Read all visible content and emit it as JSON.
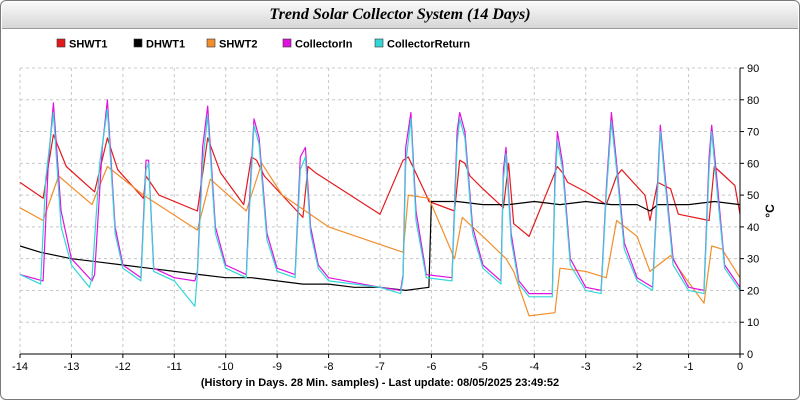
{
  "chart_data": {
    "type": "line",
    "title": "Trend Solar Collector System (14 Days)",
    "xlabel": "(History in Days. 28 Min. samples) - Last update: 08/05/2025 23:49:52",
    "ylabel": "°C",
    "xlim": [
      -14,
      0
    ],
    "ylim": [
      0,
      90
    ],
    "xticks": [
      "-14",
      "-13",
      "-12",
      "-11",
      "-10",
      "-9",
      "-8",
      "-7",
      "-6",
      "-5",
      "-4",
      "-3",
      "-2",
      "-1",
      "0"
    ],
    "yticks": [
      "0",
      "10",
      "20",
      "30",
      "40",
      "50",
      "60",
      "70",
      "80",
      "90"
    ],
    "grid": true,
    "legend_position": "top-left",
    "series": [
      {
        "name": "SHWT1",
        "color": "#e31a1c",
        "x": [
          -14,
          -13.55,
          -13.35,
          -13.1,
          -12.55,
          -12.3,
          -12.1,
          -11.6,
          -11.55,
          -11.3,
          -10.55,
          -10.35,
          -10.1,
          -9.65,
          -9.5,
          -9.4,
          -9.25,
          -8.5,
          -8.4,
          -8.25,
          -7.0,
          -6.55,
          -6.45,
          -6.1,
          -6.05,
          -5.55,
          -5.45,
          -5.35,
          -5.25,
          -5.0,
          -4.6,
          -4.5,
          -4.4,
          -4.1,
          -3.65,
          -3.55,
          -3.45,
          -3.35,
          -3.0,
          -2.6,
          -2.4,
          -2.3,
          -1.85,
          -1.75,
          -1.6,
          -1.35,
          -1.2,
          -0.6,
          -0.5,
          -0.3,
          -0.1,
          0
        ],
        "values": [
          54,
          49,
          69,
          59,
          51,
          68,
          58,
          49,
          56,
          50,
          45,
          68,
          57,
          47,
          62,
          61,
          56,
          43,
          59,
          57,
          44,
          61,
          62,
          50,
          48,
          45,
          61,
          60,
          56,
          52,
          46,
          60,
          41,
          37,
          55,
          59,
          57,
          54,
          51,
          47,
          56,
          58,
          50,
          42,
          54,
          52,
          44,
          42,
          59,
          56,
          53,
          44
        ]
      },
      {
        "name": "DHWT1",
        "color": "#000000",
        "x": [
          -14,
          -13.6,
          -13.0,
          -12.5,
          -12.0,
          -11.5,
          -11.0,
          -10.5,
          -10.0,
          -9.5,
          -9.0,
          -8.5,
          -8.0,
          -7.5,
          -7.0,
          -6.5,
          -6.05,
          -6.0,
          -5.5,
          -5.0,
          -4.5,
          -4.0,
          -3.5,
          -3.0,
          -2.5,
          -2.0,
          -1.75,
          -1.6,
          -1.0,
          -0.5,
          0
        ],
        "values": [
          34,
          32,
          30,
          29,
          28,
          27,
          26,
          25,
          24,
          24,
          23,
          22,
          22,
          21,
          21,
          20,
          21,
          48,
          48,
          47,
          47,
          48,
          47,
          48,
          47,
          47,
          45,
          47,
          47,
          48,
          47
        ]
      },
      {
        "name": "SHWT2",
        "color": "#f28e2b",
        "x": [
          -14,
          -13.55,
          -13.25,
          -12.6,
          -12.3,
          -11.6,
          -10.55,
          -10.3,
          -9.6,
          -9.3,
          -8.9,
          -8.0,
          -6.55,
          -6.45,
          -6.05,
          -5.55,
          -5.4,
          -5.0,
          -4.55,
          -4.4,
          -4.1,
          -3.6,
          -3.5,
          -3.0,
          -2.6,
          -2.4,
          -2.0,
          -1.75,
          -1.35,
          -1.2,
          -0.7,
          -0.55,
          -0.35,
          0
        ],
        "values": [
          46,
          42,
          56,
          47,
          59,
          50,
          39,
          55,
          45,
          60,
          50,
          40,
          32,
          50,
          49,
          30,
          43,
          37,
          30,
          26,
          12,
          13,
          27,
          26,
          24,
          42,
          37,
          26,
          31,
          27,
          16,
          34,
          33,
          24
        ]
      },
      {
        "name": "CollectorIn",
        "color": "#e011e0",
        "x": [
          -14,
          -13.55,
          -13.45,
          -13.35,
          -13.2,
          -13.0,
          -12.6,
          -12.55,
          -12.4,
          -12.3,
          -12.15,
          -12.0,
          -11.65,
          -11.55,
          -11.5,
          -11.4,
          -11.0,
          -10.6,
          -10.55,
          -10.45,
          -10.35,
          -10.2,
          -10.0,
          -9.6,
          -9.55,
          -9.45,
          -9.35,
          -9.2,
          -9.0,
          -8.65,
          -8.55,
          -8.45,
          -8.35,
          -8.2,
          -8.0,
          -7.0,
          -6.6,
          -6.55,
          -6.5,
          -6.4,
          -6.3,
          -6.1,
          -5.6,
          -5.5,
          -5.45,
          -5.35,
          -5.2,
          -5.0,
          -4.65,
          -4.6,
          -4.55,
          -4.45,
          -4.3,
          -4.1,
          -3.65,
          -3.6,
          -3.55,
          -3.45,
          -3.3,
          -3.0,
          -2.7,
          -2.6,
          -2.5,
          -2.4,
          -2.25,
          -2.0,
          -1.7,
          -1.6,
          -1.55,
          -1.45,
          -1.3,
          -1.0,
          -0.7,
          -0.6,
          -0.55,
          -0.45,
          -0.3,
          0
        ],
        "values": [
          25,
          23,
          60,
          79,
          45,
          30,
          23,
          25,
          65,
          80,
          40,
          28,
          24,
          61,
          61,
          27,
          24,
          23,
          26,
          65,
          78,
          40,
          28,
          25,
          45,
          74,
          68,
          38,
          27,
          25,
          62,
          65,
          40,
          28,
          24,
          21,
          20,
          25,
          65,
          76,
          45,
          25,
          24,
          70,
          76,
          70,
          40,
          28,
          23,
          58,
          65,
          38,
          23,
          19,
          19,
          55,
          70,
          60,
          30,
          21,
          20,
          52,
          76,
          60,
          35,
          24,
          21,
          55,
          72,
          55,
          30,
          21,
          20,
          62,
          72,
          55,
          28,
          21
        ]
      },
      {
        "name": "CollectorReturn",
        "color": "#33d6d6",
        "x": [
          -14,
          -13.6,
          -13.5,
          -13.35,
          -13.2,
          -13.0,
          -12.65,
          -12.6,
          -12.45,
          -12.3,
          -12.15,
          -12.0,
          -11.65,
          -11.55,
          -11.5,
          -11.4,
          -11.0,
          -10.6,
          -10.55,
          -10.45,
          -10.35,
          -10.2,
          -10.0,
          -9.6,
          -9.55,
          -9.45,
          -9.35,
          -9.2,
          -9.0,
          -8.65,
          -8.55,
          -8.45,
          -8.35,
          -8.2,
          -8.0,
          -7.0,
          -6.6,
          -6.55,
          -6.5,
          -6.4,
          -6.3,
          -6.1,
          -5.6,
          -5.5,
          -5.45,
          -5.35,
          -5.2,
          -5.0,
          -4.65,
          -4.6,
          -4.55,
          -4.45,
          -4.3,
          -4.1,
          -3.65,
          -3.6,
          -3.55,
          -3.45,
          -3.3,
          -3.0,
          -2.7,
          -2.6,
          -2.5,
          -2.4,
          -2.25,
          -2.0,
          -1.7,
          -1.6,
          -1.55,
          -1.45,
          -1.3,
          -1.0,
          -0.7,
          -0.6,
          -0.55,
          -0.45,
          -0.3,
          0
        ],
        "values": [
          25,
          22,
          55,
          76,
          40,
          28,
          21,
          24,
          60,
          77,
          38,
          27,
          23,
          58,
          60,
          26,
          23,
          15,
          25,
          60,
          75,
          38,
          27,
          24,
          42,
          72,
          66,
          36,
          26,
          24,
          58,
          62,
          38,
          27,
          23,
          21,
          19,
          24,
          60,
          74,
          42,
          24,
          23,
          66,
          74,
          68,
          38,
          27,
          22,
          55,
          63,
          36,
          22,
          18,
          18,
          52,
          67,
          58,
          28,
          20,
          19,
          50,
          73,
          58,
          33,
          23,
          20,
          52,
          70,
          53,
          28,
          20,
          19,
          58,
          70,
          52,
          27,
          20
        ]
      }
    ]
  }
}
